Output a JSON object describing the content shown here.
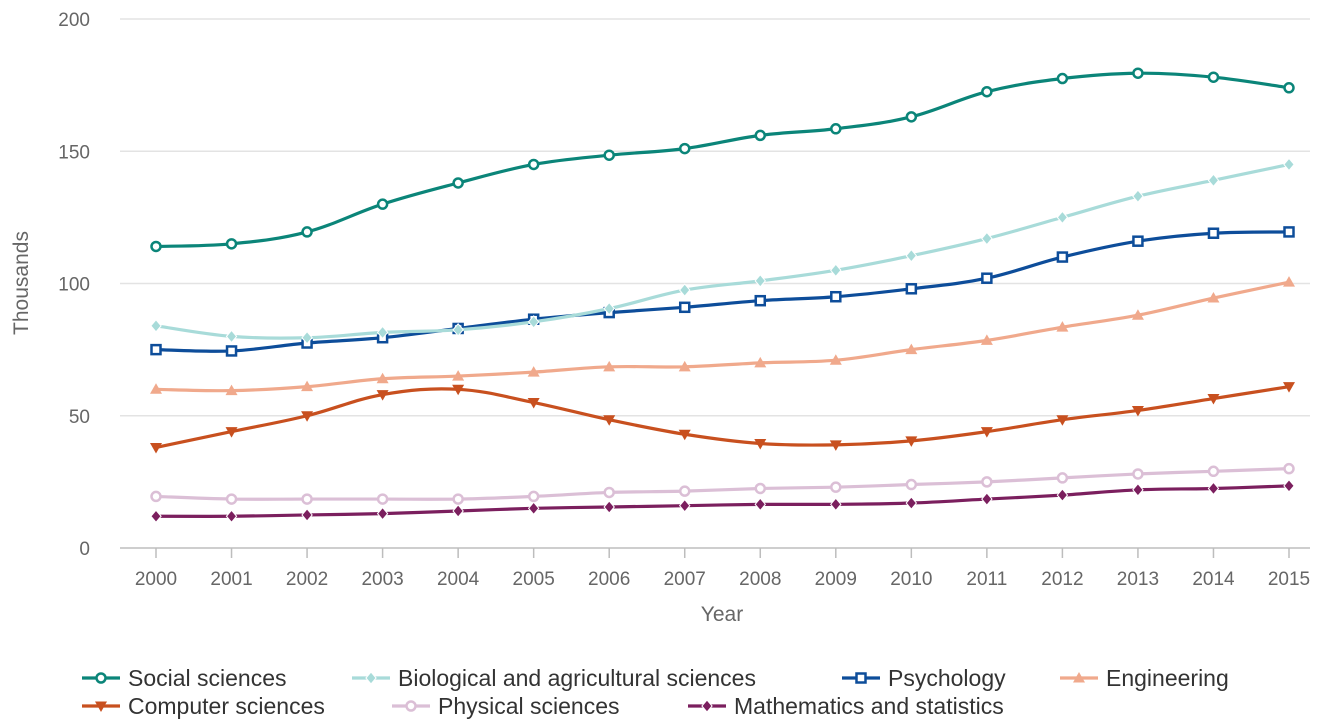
{
  "chart_data": {
    "type": "line",
    "title": "",
    "xlabel": "Year",
    "ylabel": "Thousands",
    "ylim": [
      0,
      200
    ],
    "yticks": [
      "0",
      "50",
      "100",
      "150",
      "200"
    ],
    "grid": "horizontal",
    "legend_position": "bottom",
    "categories": [
      "2000",
      "2001",
      "2002",
      "2003",
      "2004",
      "2005",
      "2006",
      "2007",
      "2008",
      "2009",
      "2010",
      "2011",
      "2012",
      "2013",
      "2014",
      "2015"
    ],
    "series": [
      {
        "name": "Social sciences",
        "color": "#0b8579",
        "marker": "circle",
        "values": [
          114,
          115,
          119.5,
          130,
          138,
          145,
          148.5,
          151,
          156,
          158.5,
          163,
          172.5,
          177.5,
          179.5,
          178,
          174
        ]
      },
      {
        "name": "Biological and agricultural sciences",
        "color": "#a8dbd9",
        "marker": "diamond",
        "values": [
          84,
          80,
          79.5,
          81.5,
          82.5,
          85.5,
          90.5,
          97.5,
          101,
          105,
          110.5,
          117,
          125,
          133,
          139,
          145
        ]
      },
      {
        "name": "Psychology",
        "color": "#0d4d9a",
        "marker": "square",
        "values": [
          75,
          74.5,
          77.5,
          79.5,
          83,
          86.5,
          89,
          91,
          93.5,
          95,
          98,
          102,
          110,
          116,
          119,
          119.5
        ]
      },
      {
        "name": "Engineering",
        "color": "#f0a98c",
        "marker": "triangle-up",
        "values": [
          60,
          59.5,
          61,
          64,
          65,
          66.5,
          68.5,
          68.5,
          70,
          71,
          75,
          78.5,
          83.5,
          88,
          94.5,
          100.5
        ]
      },
      {
        "name": "Computer sciences",
        "color": "#c8501f",
        "marker": "triangle-down",
        "values": [
          38,
          44,
          50,
          58,
          60,
          55,
          48.5,
          43,
          39.5,
          39,
          40.5,
          44,
          48.5,
          52,
          56.5,
          61
        ]
      },
      {
        "name": "Physical sciences",
        "color": "#dbbfd6",
        "marker": "circle",
        "values": [
          19.5,
          18.5,
          18.5,
          18.5,
          18.5,
          19.5,
          21,
          21.5,
          22.5,
          23,
          24,
          25,
          26.5,
          28,
          29,
          30
        ]
      },
      {
        "name": "Mathematics and statistics",
        "color": "#7b1f5e",
        "marker": "diamond",
        "values": [
          12,
          12,
          12.5,
          13,
          14,
          15,
          15.5,
          16,
          16.5,
          16.5,
          17,
          18.5,
          20,
          22,
          22.5,
          23.5
        ]
      }
    ]
  }
}
